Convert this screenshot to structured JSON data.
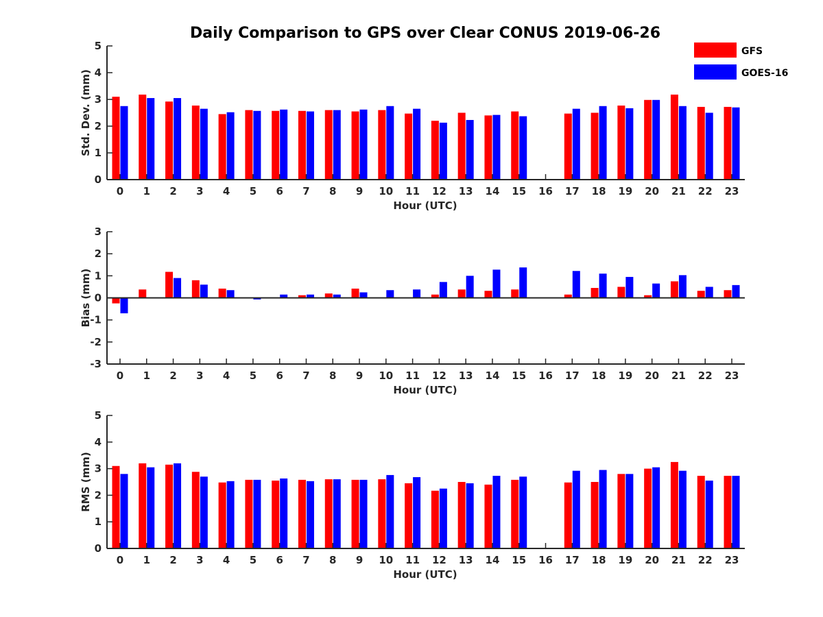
{
  "chart_data": {
    "type": "bar",
    "title": "Daily Comparison to GPS over Clear CONUS 2019-06-26",
    "legend": {
      "position": "top-right",
      "entries": [
        {
          "name": "GFS",
          "color": "#ff0000"
        },
        {
          "name": "GOES-16",
          "color": "#0000ff"
        }
      ]
    },
    "categories": [
      "0",
      "1",
      "2",
      "3",
      "4",
      "5",
      "6",
      "7",
      "8",
      "9",
      "10",
      "11",
      "12",
      "13",
      "14",
      "15",
      "16",
      "17",
      "18",
      "19",
      "20",
      "21",
      "22",
      "23"
    ],
    "panels": [
      {
        "id": "std",
        "ylabel": "Std. Dev. (mm)",
        "xlabel": "Hour (UTC)",
        "ylim": [
          0,
          5
        ],
        "yticks": [
          "0",
          "1",
          "2",
          "3",
          "4",
          "5"
        ],
        "series": [
          {
            "name": "GFS",
            "values": [
              3.1,
              3.18,
              2.92,
              2.77,
              2.45,
              2.6,
              2.57,
              2.57,
              2.6,
              2.55,
              2.6,
              2.47,
              2.2,
              2.5,
              2.4,
              2.55,
              null,
              2.47,
              2.5,
              2.77,
              2.98,
              3.18,
              2.72,
              2.72
            ]
          },
          {
            "name": "GOES-16",
            "values": [
              2.75,
              3.05,
              3.05,
              2.65,
              2.52,
              2.57,
              2.62,
              2.55,
              2.6,
              2.62,
              2.75,
              2.65,
              2.13,
              2.23,
              2.42,
              2.37,
              null,
              2.65,
              2.75,
              2.67,
              2.98,
              2.75,
              2.5,
              2.7
            ]
          }
        ]
      },
      {
        "id": "bias",
        "ylabel": "Bias (mm)",
        "xlabel": "Hour (UTC)",
        "ylim": [
          -3,
          3
        ],
        "yticks": [
          "-3",
          "-2",
          "-1",
          "0",
          "1",
          "2",
          "3"
        ],
        "series": [
          {
            "name": "GFS",
            "values": [
              -0.25,
              0.38,
              1.18,
              0.8,
              0.42,
              0.0,
              0.02,
              0.12,
              0.2,
              0.42,
              0.03,
              0.03,
              0.15,
              0.38,
              0.32,
              0.38,
              null,
              0.15,
              0.45,
              0.5,
              0.12,
              0.75,
              0.32,
              0.35
            ]
          },
          {
            "name": "GOES-16",
            "values": [
              -0.7,
              0.03,
              0.9,
              0.6,
              0.35,
              -0.07,
              0.15,
              0.15,
              0.15,
              0.25,
              0.35,
              0.38,
              0.72,
              1.0,
              1.28,
              1.38,
              null,
              1.22,
              1.1,
              0.95,
              0.65,
              1.03,
              0.5,
              0.58
            ]
          }
        ]
      },
      {
        "id": "rms",
        "ylabel": "RMS (mm)",
        "xlabel": "Hour (UTC)",
        "ylim": [
          0,
          5
        ],
        "yticks": [
          "0",
          "1",
          "2",
          "3",
          "4",
          "5"
        ],
        "series": [
          {
            "name": "GFS",
            "values": [
              3.1,
              3.2,
              3.15,
              2.88,
              2.48,
              2.58,
              2.55,
              2.58,
              2.6,
              2.58,
              2.6,
              2.45,
              2.17,
              2.5,
              2.4,
              2.58,
              null,
              2.48,
              2.5,
              2.8,
              3.0,
              3.25,
              2.73,
              2.73
            ]
          },
          {
            "name": "GOES-16",
            "values": [
              2.8,
              3.05,
              3.2,
              2.7,
              2.53,
              2.58,
              2.63,
              2.53,
              2.6,
              2.58,
              2.76,
              2.68,
              2.25,
              2.45,
              2.73,
              2.7,
              null,
              2.92,
              2.95,
              2.8,
              3.05,
              2.92,
              2.55,
              2.73
            ]
          }
        ]
      }
    ]
  }
}
